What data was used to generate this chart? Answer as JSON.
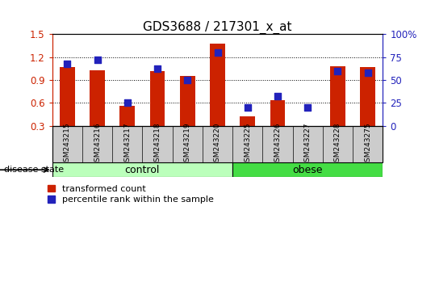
{
  "title": "GDS3688 / 217301_x_at",
  "samples": [
    "GSM243215",
    "GSM243216",
    "GSM243217",
    "GSM243218",
    "GSM243219",
    "GSM243220",
    "GSM243225",
    "GSM243226",
    "GSM243227",
    "GSM243228",
    "GSM243275"
  ],
  "transformed_count": [
    1.07,
    1.03,
    0.56,
    1.02,
    0.95,
    1.38,
    0.42,
    0.64,
    0.3,
    1.08,
    1.07
  ],
  "percentile_rank": [
    0.68,
    0.72,
    0.25,
    0.62,
    0.5,
    0.8,
    0.2,
    0.32,
    0.2,
    0.6,
    0.58
  ],
  "groups": [
    {
      "label": "control",
      "n": 6,
      "color": "#bbffbb"
    },
    {
      "label": "obese",
      "n": 5,
      "color": "#44dd44"
    }
  ],
  "ylim_left": [
    0.3,
    1.5
  ],
  "ylim_right": [
    0,
    100
  ],
  "yticks_left": [
    0.3,
    0.6,
    0.9,
    1.2,
    1.5
  ],
  "yticks_right": [
    0,
    25,
    50,
    75,
    100
  ],
  "bar_color": "#cc2200",
  "dot_color": "#2222bb",
  "bar_width": 0.5,
  "dot_size": 40,
  "tick_label_area_color": "#cccccc",
  "group_label_fontsize": 9,
  "title_fontsize": 11,
  "legend_red_label": "transformed count",
  "legend_blue_label": "percentile rank within the sample",
  "disease_state_label": "disease state"
}
